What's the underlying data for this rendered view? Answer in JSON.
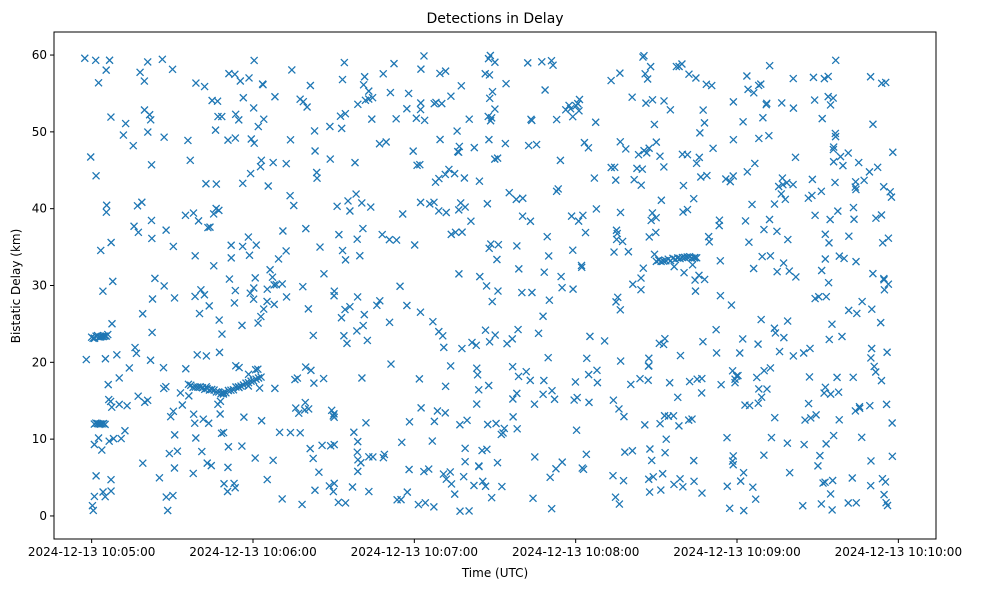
{
  "chart_data": {
    "type": "scatter",
    "title": "Detections in Delay",
    "xlabel": "Time (UTC)",
    "ylabel": "Bistatic Delay (km)",
    "marker": "x",
    "color": "#1f77b4",
    "grid": false,
    "x_unit": "seconds after 2024-12-13 10:05:00",
    "xlim": [
      -14,
      314
    ],
    "ylim": [
      -3,
      63
    ],
    "x_ticks": [
      {
        "value": 0,
        "label": "2024-12-13 10:05:00"
      },
      {
        "value": 60,
        "label": "2024-12-13 10:06:00"
      },
      {
        "value": 120,
        "label": "2024-12-13 10:07:00"
      },
      {
        "value": 180,
        "label": "2024-12-13 10:08:00"
      },
      {
        "value": 240,
        "label": "2024-12-13 10:09:00"
      },
      {
        "value": 300,
        "label": "2024-12-13 10:10:00"
      }
    ],
    "y_ticks": [
      0,
      10,
      20,
      30,
      40,
      50,
      60
    ],
    "tracks": [
      {
        "x_start": 0,
        "x_end": 6,
        "y_start": 23.2,
        "y_end": 23.6,
        "points": 12
      },
      {
        "x_start": 1,
        "x_end": 5,
        "y_start": 12.0,
        "y_end": 12.0,
        "points": 8
      },
      {
        "x_start": 36,
        "x_end": 49,
        "y_start": 17.0,
        "y_end": 16.0,
        "points": 16
      },
      {
        "x_start": 49,
        "x_end": 63,
        "y_start": 16.0,
        "y_end": 18.0,
        "points": 16
      },
      {
        "x_start": 210,
        "x_end": 225,
        "y_start": 33.2,
        "y_end": 33.7,
        "points": 18
      }
    ],
    "clutter": {
      "count": 900,
      "x_range": [
        -3,
        298
      ],
      "y_range": [
        0.5,
        60
      ]
    }
  }
}
